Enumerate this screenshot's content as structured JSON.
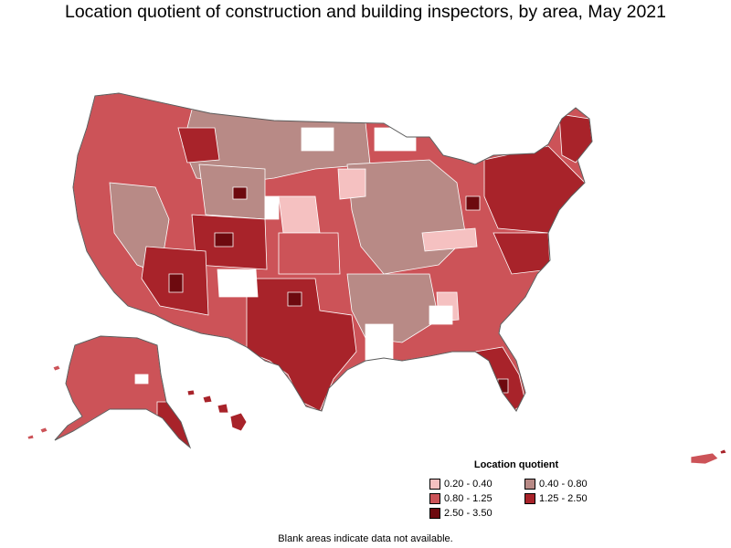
{
  "title": "Location quotient of construction and building inspectors, by area, May 2021",
  "legend": {
    "title": "Location quotient",
    "items": [
      {
        "label": "0.20 - 0.40",
        "color": "#f5c1c1"
      },
      {
        "label": "0.40 - 0.80",
        "color": "#b88a86"
      },
      {
        "label": "0.80 - 1.25",
        "color": "#cc5358"
      },
      {
        "label": "1.25 - 2.50",
        "color": "#a8232a"
      },
      {
        "label": "2.50 - 3.50",
        "color": "#6d0a0f"
      }
    ]
  },
  "footnote": "Blank areas indicate data not available.",
  "map": {
    "regions": [
      {
        "id": "alaska",
        "class": "0.80 - 1.25"
      },
      {
        "id": "hawaii",
        "class": "1.25 - 2.50"
      },
      {
        "id": "puerto-rico",
        "class": "0.80 - 1.25"
      },
      {
        "id": "contiguous-us",
        "class": "0.80 - 1.25"
      }
    ]
  }
}
